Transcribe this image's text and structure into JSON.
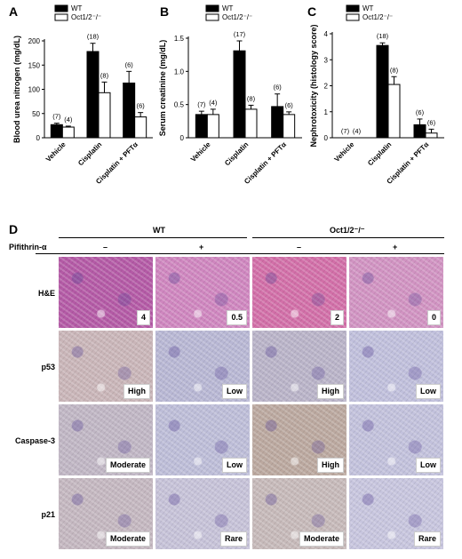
{
  "chart_data": [
    {
      "panel": "A",
      "type": "bar",
      "ylabel": "Blood urea nitrogen (mg/dL)",
      "ylim": [
        0,
        200
      ],
      "yticks": [
        0,
        50,
        100,
        150,
        200
      ],
      "categories": [
        "Vehicle",
        "Cisplatin",
        "Cisplatin + PFTα"
      ],
      "series": [
        {
          "name": "WT",
          "color": "#000000",
          "values": [
            27,
            178,
            113
          ],
          "errors": [
            3,
            17,
            24
          ],
          "n": [
            "(7)",
            "(18)",
            "(6)"
          ]
        },
        {
          "name": "Oct1/2⁻/⁻",
          "color": "#ffffff",
          "values": [
            22,
            93,
            43
          ],
          "errors": [
            2,
            22,
            9
          ],
          "n": [
            "(4)",
            "(8)",
            "(6)"
          ]
        }
      ]
    },
    {
      "panel": "B",
      "type": "bar",
      "ylabel": "Serum creatinine (mg/dL)",
      "ylim": [
        0,
        1.5
      ],
      "yticks": [
        0,
        0.5,
        1.0,
        1.5
      ],
      "ytick_labels": [
        "0",
        "0.5",
        "1.0",
        "1.5"
      ],
      "categories": [
        "Vehicle",
        "Cisplatin",
        "Cisplatin + PFTα"
      ],
      "series": [
        {
          "name": "WT",
          "color": "#000000",
          "values": [
            0.35,
            1.31,
            0.47
          ],
          "errors": [
            0.05,
            0.15,
            0.19
          ],
          "n": [
            "(7)",
            "(17)",
            "(6)"
          ]
        },
        {
          "name": "Oct1/2⁻/⁻",
          "color": "#ffffff",
          "values": [
            0.35,
            0.43,
            0.35
          ],
          "errors": [
            0.08,
            0.06,
            0.04
          ],
          "n": [
            "(4)",
            "(8)",
            "(6)"
          ]
        }
      ]
    },
    {
      "panel": "C",
      "type": "bar",
      "ylabel": "Nephrotoxicity (histology score)",
      "ylim": [
        0,
        4
      ],
      "yticks": [
        0,
        1,
        2,
        3,
        4
      ],
      "categories": [
        "Vehicle",
        "Cisplatin",
        "Cisplatin + PFTα"
      ],
      "series": [
        {
          "name": "WT",
          "color": "#000000",
          "values": [
            0,
            3.55,
            0.5
          ],
          "errors": [
            0,
            0.1,
            0.22
          ],
          "n": [
            "(7)",
            "(18)",
            "(6)"
          ]
        },
        {
          "name": "Oct1/2⁻/⁻",
          "color": "#ffffff",
          "values": [
            0,
            2.05,
            0.18
          ],
          "errors": [
            0,
            0.3,
            0.15
          ],
          "n": [
            "(4)",
            "(8)",
            "(6)"
          ]
        }
      ]
    }
  ],
  "histology": {
    "panel": "D",
    "groups": [
      "WT",
      "Oct1/2⁻/⁻"
    ],
    "treatment_label": "Pifithrin-α",
    "treatments": [
      "–",
      "+",
      "–",
      "+"
    ],
    "rows": [
      {
        "label": "H&E",
        "scores": [
          "4",
          "0.5",
          "2",
          "0"
        ],
        "tints": [
          "#b45aa6",
          "#cf86bf",
          "#d26fa8",
          "#d193c2"
        ]
      },
      {
        "label": "p53",
        "scores": [
          "High",
          "Low",
          "High",
          "Low"
        ],
        "tints": [
          "#c9b5b8",
          "#b8b7d4",
          "#b9b3c8",
          "#c0bfdc"
        ]
      },
      {
        "label": "Caspase-3",
        "scores": [
          "Moderate",
          "Low",
          "High",
          "Low"
        ],
        "tints": [
          "#c0b6c4",
          "#bdbdd8",
          "#bba89f",
          "#c2c1dc"
        ]
      },
      {
        "label": "p21",
        "scores": [
          "Moderate",
          "Rare",
          "Moderate",
          "Rare"
        ],
        "tints": [
          "#c4b7c0",
          "#c6c2d8",
          "#c6b9b9",
          "#c7c5de"
        ]
      }
    ]
  }
}
